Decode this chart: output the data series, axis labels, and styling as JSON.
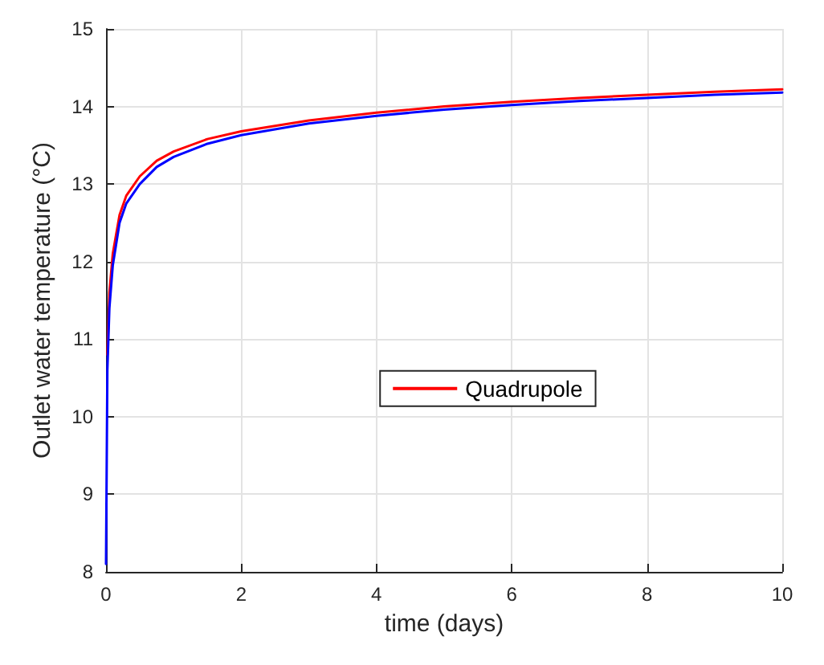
{
  "chart_data": {
    "type": "line",
    "xlabel": "time (days)",
    "ylabel": "Outlet water temperature (°C)",
    "x": [
      0,
      0.02,
      0.05,
      0.1,
      0.2,
      0.3,
      0.5,
      0.75,
      1,
      1.5,
      2,
      3,
      4,
      5,
      6,
      7,
      8,
      9,
      10
    ],
    "series": [
      {
        "name": "Quadrupole",
        "color": "#ff0000",
        "values": [
          null,
          10.8,
          11.6,
          12.1,
          12.6,
          12.85,
          13.1,
          13.3,
          13.42,
          13.58,
          13.68,
          13.82,
          13.92,
          14.0,
          14.06,
          14.11,
          14.15,
          14.19,
          14.22
        ]
      },
      {
        "color": "#0000ff",
        "values": [
          8.1,
          10.6,
          11.4,
          11.95,
          12.5,
          12.75,
          13.0,
          13.22,
          13.35,
          13.52,
          13.63,
          13.78,
          13.88,
          13.96,
          14.02,
          14.07,
          14.11,
          14.15,
          14.18
        ]
      }
    ],
    "xlim": [
      0,
      10
    ],
    "xticks": [
      0,
      2,
      4,
      6,
      8,
      10
    ],
    "ylim": [
      8,
      15
    ],
    "yticks": [
      8,
      9,
      10,
      11,
      12,
      13,
      14,
      15
    ],
    "grid": true,
    "legend": "center",
    "marker": "none",
    "line_style": "solid"
  }
}
